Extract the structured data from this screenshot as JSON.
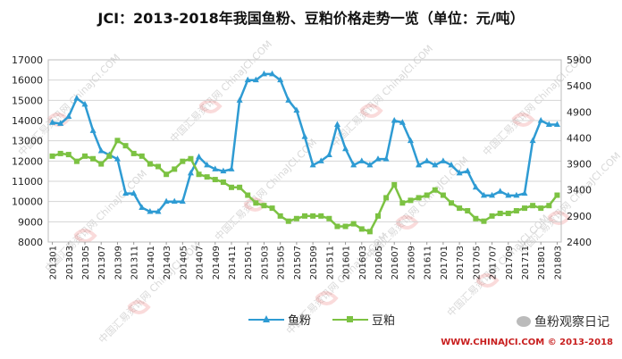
{
  "chart_data": {
    "type": "line",
    "title": "JCI：2013-2018年我国鱼粉、豆粕价格走势一览（单位：元/吨）",
    "xlabel": "",
    "ylabel": "",
    "categories": [
      "201301",
      "201302",
      "201303",
      "201304",
      "201305",
      "201306",
      "201307",
      "201308",
      "201309",
      "201310",
      "201311",
      "201312",
      "201401",
      "201402",
      "201403",
      "201404",
      "201405",
      "201406",
      "201407",
      "201408",
      "201409",
      "201410",
      "201411",
      "201412",
      "201501",
      "201502",
      "201503",
      "201504",
      "201505",
      "201506",
      "201507",
      "201508",
      "201509",
      "201510",
      "201511",
      "201512",
      "201601",
      "201602",
      "201603",
      "201604",
      "201605",
      "201606",
      "201607",
      "201608",
      "201609",
      "201610",
      "201611",
      "201612",
      "201701",
      "201702",
      "201703",
      "201704",
      "201705",
      "201706",
      "201707",
      "201708",
      "201709",
      "201710",
      "201711",
      "201712",
      "201801",
      "201802",
      "201803"
    ],
    "x_tick_labels": [
      "201301",
      "201303",
      "201305",
      "201307",
      "201309",
      "201311",
      "201401",
      "201403",
      "201405",
      "201407",
      "201409",
      "201411",
      "201501",
      "201503",
      "201505",
      "201507",
      "201509",
      "201511",
      "201601",
      "201603",
      "201605",
      "201607",
      "201609",
      "201611",
      "201701",
      "201703",
      "201705",
      "201707",
      "201709",
      "201711",
      "201801",
      "201803"
    ],
    "y_left": {
      "ylim": [
        8000,
        17000
      ],
      "ticks": [
        8000,
        9000,
        10000,
        11000,
        12000,
        13000,
        14000,
        15000,
        16000,
        17000
      ]
    },
    "y_right": {
      "ylim": [
        2400,
        5900
      ],
      "ticks": [
        2400,
        2900,
        3400,
        3900,
        4400,
        4900,
        5400,
        5900
      ]
    },
    "grid": true,
    "legend_position": "bottom",
    "series": [
      {
        "name": "鱼粉",
        "axis": "left",
        "color": "#2e9bd3",
        "marker": "triangle",
        "values": [
          13900,
          13850,
          14200,
          15100,
          14800,
          13500,
          12500,
          12300,
          12100,
          10400,
          10400,
          9700,
          9500,
          9500,
          10000,
          10000,
          10000,
          11400,
          12200,
          11800,
          11600,
          11500,
          11600,
          15000,
          16000,
          16000,
          16300,
          16300,
          16000,
          15000,
          14500,
          13200,
          11800,
          12000,
          12300,
          13800,
          12600,
          11800,
          12000,
          11800,
          12100,
          12100,
          14000,
          13900,
          13000,
          11800,
          12000,
          11800,
          12000,
          11800,
          11400,
          11500,
          10700,
          10300,
          10300,
          10500,
          10300,
          10300,
          10400,
          13000,
          14000,
          13800,
          13800
        ]
      },
      {
        "name": "豆粕",
        "axis": "right",
        "color": "#7cc242",
        "marker": "square",
        "values": [
          4050,
          4100,
          4080,
          3950,
          4050,
          4000,
          3900,
          4050,
          4350,
          4250,
          4100,
          4050,
          3900,
          3850,
          3700,
          3800,
          3950,
          4000,
          3700,
          3650,
          3600,
          3550,
          3450,
          3450,
          3300,
          3150,
          3100,
          3050,
          2900,
          2800,
          2850,
          2900,
          2900,
          2900,
          2850,
          2700,
          2700,
          2750,
          2650,
          2600,
          2900,
          3250,
          3500,
          3150,
          3200,
          3250,
          3300,
          3400,
          3300,
          3150,
          3050,
          3000,
          2850,
          2800,
          2900,
          2950,
          2950,
          3000,
          3050,
          3100,
          3050,
          3100,
          3300
        ]
      }
    ]
  },
  "watermarks": {
    "brand_text": "鱼粉观察日记",
    "copyright_text": "WWW.CHINAJCI.COM © 2013-2018",
    "diagonal_text": "中国汇易资讯网 ChinaJCI.COM",
    "mark_color": "#e23a3a"
  }
}
